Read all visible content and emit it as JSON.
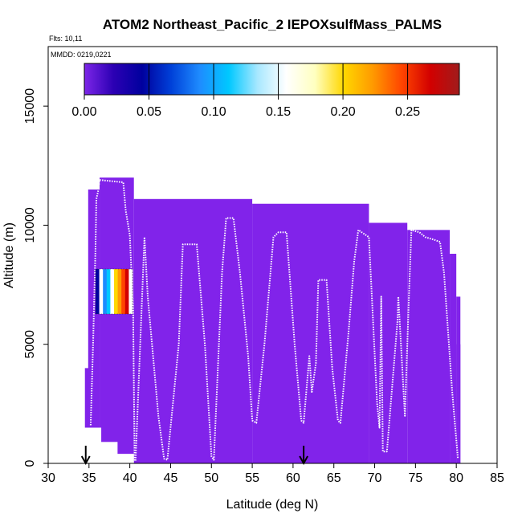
{
  "chart_data": {
    "type": "heatmap",
    "title": "ATOM2 Northeast_Pacific_2 IEPOXsulfMass_PALMS",
    "subtitle_flights": "Flts: 10,11",
    "subtitle_dates": "MMDD: 0219,0221",
    "xlabel": "Latitude (deg N)",
    "ylabel": "Altitude (m)",
    "xlim": [
      30,
      85
    ],
    "ylim": [
      0,
      17500
    ],
    "x_ticks": [
      "30",
      "35",
      "40",
      "45",
      "50",
      "55",
      "60",
      "65",
      "70",
      "75",
      "80",
      "85"
    ],
    "y_ticks": [
      "0",
      "5000",
      "10000",
      "15000"
    ],
    "grid": false,
    "colorbar": {
      "ticks": [
        "0.00",
        "0.05",
        "0.10",
        "0.15",
        "0.20",
        "0.25"
      ],
      "range": [
        0,
        0.29
      ],
      "colors": [
        "#7d26e8",
        "#2c00b4",
        "#00009e",
        "#0040d8",
        "#1e8cff",
        "#00c8ff",
        "#a8e8ff",
        "#ffffff",
        "#ffffc0",
        "#ffd700",
        "#ff9a00",
        "#ff4500",
        "#d20000",
        "#a01c1c"
      ]
    },
    "fill_color": "#8123ea",
    "fill_value": 0.0,
    "coverage_blocks": [
      {
        "lat_min": 34.5,
        "lat_max": 36.3,
        "alt_max": 4000
      },
      {
        "lat_min": 34.9,
        "lat_max": 36.3,
        "alt_max": 11500
      },
      {
        "lat_min": 36.3,
        "lat_max": 40.5,
        "alt_max": 12000
      },
      {
        "lat_min": 40.5,
        "lat_max": 55.0,
        "alt_max": 11100
      },
      {
        "lat_min": 55.0,
        "lat_max": 69.3,
        "alt_max": 10900
      },
      {
        "lat_min": 69.3,
        "lat_max": 74.0,
        "alt_max": 10100
      },
      {
        "lat_min": 74.0,
        "lat_max": 79.2,
        "alt_max": 9800
      },
      {
        "lat_min": 79.2,
        "lat_max": 80.0,
        "alt_max": 8800
      },
      {
        "lat_min": 80.0,
        "lat_max": 80.5,
        "alt_max": 7000
      },
      {
        "lat_min": 80.0,
        "lat_max": 80.5,
        "alt_max": 5000
      }
    ],
    "uncovered_lower_left": [
      {
        "lat_min": 34.5,
        "lat_max": 36.5,
        "alt_max": 1500
      },
      {
        "lat_min": 36.5,
        "lat_max": 38.5,
        "alt_max": 900
      },
      {
        "lat_min": 38.5,
        "lat_max": 40.5,
        "alt_max": 400
      }
    ],
    "flight_track": [
      [
        35.2,
        1600
      ],
      [
        35.5,
        5000
      ],
      [
        35.8,
        9000
      ],
      [
        35.9,
        11100
      ],
      [
        36.1,
        11400
      ],
      [
        36.3,
        11900
      ],
      [
        39.2,
        11800
      ],
      [
        39.5,
        10600
      ],
      [
        40.0,
        9600
      ],
      [
        40.4,
        6500
      ],
      [
        40.6,
        150
      ],
      [
        40.7,
        100
      ],
      [
        41.8,
        9500
      ],
      [
        42.2,
        7000
      ],
      [
        43.5,
        2000
      ],
      [
        44.2,
        200
      ],
      [
        44.6,
        150
      ],
      [
        46.0,
        5000
      ],
      [
        46.5,
        9200
      ],
      [
        48.2,
        9200
      ],
      [
        49.2,
        5000
      ],
      [
        50.0,
        300
      ],
      [
        50.3,
        150
      ],
      [
        51.3,
        8000
      ],
      [
        51.8,
        10300
      ],
      [
        52.7,
        10300
      ],
      [
        53.5,
        8000
      ],
      [
        54.5,
        4500
      ],
      [
        55.0,
        1800
      ],
      [
        55.5,
        1700
      ],
      [
        56.5,
        5000
      ],
      [
        57.6,
        9500
      ],
      [
        58.2,
        9700
      ],
      [
        59.2,
        9700
      ],
      [
        60.2,
        5000
      ],
      [
        61.0,
        1800
      ],
      [
        61.3,
        1700
      ],
      [
        62.0,
        4500
      ],
      [
        62.3,
        3000
      ],
      [
        62.8,
        4200
      ],
      [
        63.1,
        7700
      ],
      [
        64.1,
        7700
      ],
      [
        64.8,
        4000
      ],
      [
        65.5,
        1800
      ],
      [
        65.8,
        1700
      ],
      [
        66.8,
        5500
      ],
      [
        67.5,
        8500
      ],
      [
        68.0,
        9800
      ],
      [
        69.3,
        9500
      ],
      [
        69.8,
        6000
      ],
      [
        70.3,
        2500
      ],
      [
        70.6,
        1500
      ],
      [
        70.8,
        7000
      ],
      [
        71.0,
        500
      ],
      [
        71.5,
        500
      ],
      [
        72.8,
        6000
      ],
      [
        72.9,
        7000
      ],
      [
        73.7,
        2000
      ],
      [
        74.2,
        7000
      ],
      [
        74.5,
        9800
      ],
      [
        75.5,
        9700
      ],
      [
        76.2,
        9500
      ],
      [
        77.2,
        9400
      ],
      [
        78.0,
        9300
      ],
      [
        78.5,
        8000
      ],
      [
        79.5,
        3000
      ],
      [
        80.2,
        200
      ]
    ],
    "legend_inset_swatches": [
      "#0000a0",
      "#ffffff",
      "#1e8cff",
      "#00c8ff",
      "#ffffff",
      "#ffd700",
      "#ff9a00",
      "#ff4500",
      "#d20000",
      "#ffffff"
    ],
    "arrow_markers_lat": [
      34.6,
      61.3
    ]
  }
}
